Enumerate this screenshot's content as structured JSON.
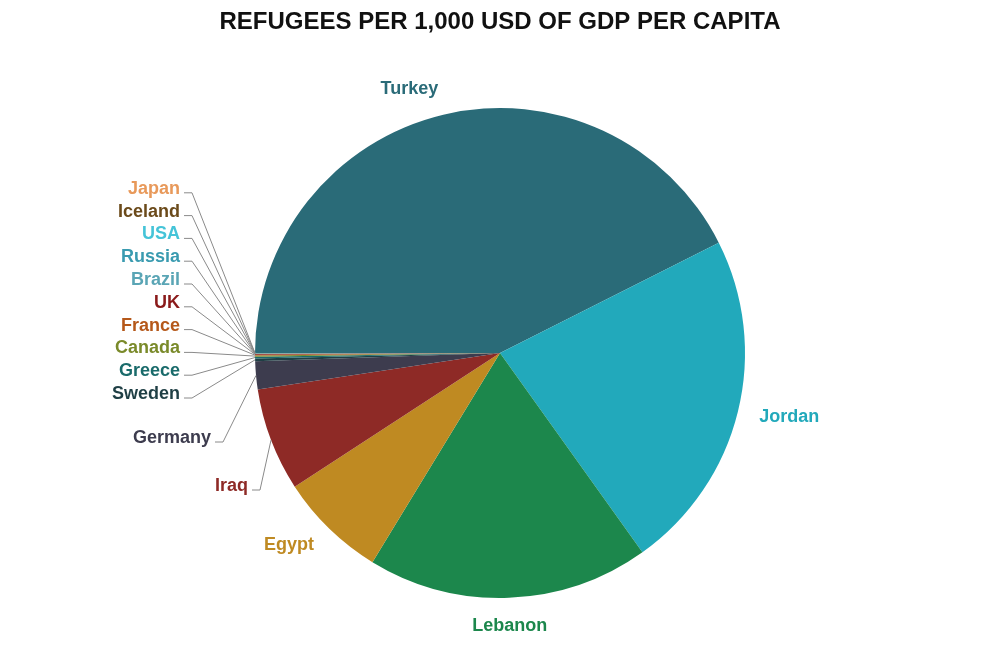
{
  "chart_data": {
    "type": "pie",
    "title": "REFUGEES PER 1,000 USD OF GDP PER CAPITA",
    "categories": [
      "Turkey",
      "Jordan",
      "Lebanon",
      "Egypt",
      "Iraq",
      "Germany",
      "Sweden",
      "Greece",
      "Canada",
      "France",
      "UK",
      "Brazil",
      "Russia",
      "USA",
      "Iceland",
      "Japan"
    ],
    "values": [
      300,
      159,
      131,
      50,
      48,
      13,
      1.3,
      0.8,
      0.5,
      0.4,
      0.3,
      0.1,
      0.1,
      0.2,
      0.05,
      0.02
    ],
    "colors": [
      "#2a6b78",
      "#22a9bb",
      "#1c874c",
      "#bf8a22",
      "#8e2a26",
      "#3d3c4e",
      "#1f3f45",
      "#1a6b6b",
      "#7a8a2a",
      "#b5581a",
      "#8a1a1a",
      "#5aa5b5",
      "#3a9bb0",
      "#45c4d8",
      "#6b4a1a",
      "#e8995a"
    ]
  }
}
